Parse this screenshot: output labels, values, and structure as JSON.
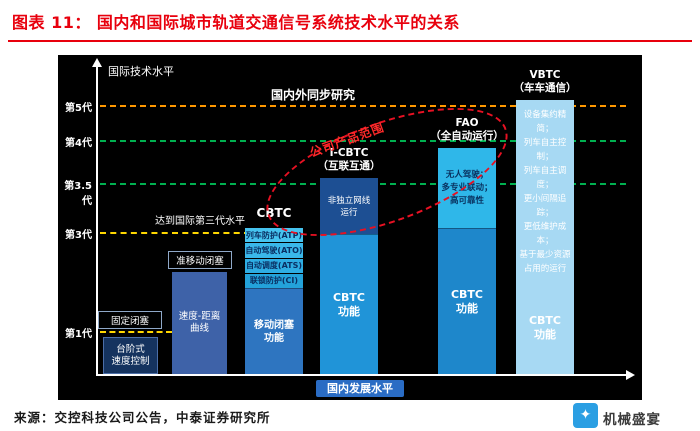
{
  "header": {
    "title": "图表 11：  国内和国际城市轨道交通信号系统技术水平的关系"
  },
  "chart": {
    "y_axis_title": "国际技术水平",
    "x_axis_label": "国内发展水平",
    "generation_labels": {
      "gen5": "第5代",
      "gen4": "第4代",
      "gen3_5": "第3.5代",
      "gen3": "第3代",
      "gen1": "第1代"
    },
    "annotations": {
      "sync_research": "国内外同步研究",
      "reach_gen3": "达到国际第三代水平",
      "product_scope": "公司产品范围"
    },
    "bars": [
      {
        "label": "固定闭塞",
        "body": "台阶式\n速度控制"
      },
      {
        "label": "准移动闭塞",
        "body": "速度-距离\n曲线"
      },
      {
        "label": "CBTC",
        "features": [
          "列车防护(ATP)",
          "自动驾驶(ATO)",
          "自动调度(ATS)",
          "联锁防护(CI)"
        ],
        "body": "移动闭塞\n功能"
      },
      {
        "label": "I-CBTC\n（互联互通）",
        "top": "非独立网线运行",
        "body": "CBTC\n功能"
      },
      {
        "label": "FAO\n（全自动运行）",
        "top": "无人驾驶；\n多专业联动；\n高可靠性",
        "body": "CBTC\n功能"
      },
      {
        "label": "VBTC\n（车车通信）",
        "top": "设备集约精简；\n列车自主控制；\n列车自主调度；\n更小间隔追踪；\n更低维护成本；\n基于最少资源\n占用的运行",
        "body": "CBTC\n功能"
      }
    ]
  },
  "chart_data": {
    "type": "bar",
    "title": "国内和国际城市轨道交通信号系统技术水平的关系",
    "xlabel": "国内发展水平",
    "ylabel": "国际技术水平",
    "categories": [
      "固定闭塞",
      "准移动闭塞",
      "CBTC",
      "I-CBTC（互联互通）",
      "FAO（全自动运行）",
      "VBTC（车车通信）"
    ],
    "values": [
      1,
      2,
      3,
      3.5,
      4,
      5
    ],
    "value_unit": "国际技术代际",
    "ytick_labels": [
      "第1代",
      "第3代",
      "第3.5代",
      "第4代",
      "第5代"
    ],
    "annotations": [
      "国内外同步研究",
      "达到国际第三代水平",
      "公司产品范围"
    ],
    "bar_details": [
      {
        "category": "固定闭塞",
        "contents": [
          "台阶式速度控制"
        ]
      },
      {
        "category": "准移动闭塞",
        "contents": [
          "速度-距离曲线"
        ]
      },
      {
        "category": "CBTC",
        "contents": [
          "列车防护(ATP)",
          "自动驾驶(ATO)",
          "自动调度(ATS)",
          "联锁防护(CI)",
          "移动闭塞功能"
        ]
      },
      {
        "category": "I-CBTC（互联互通）",
        "contents": [
          "非独立网线运行",
          "CBTC功能"
        ]
      },
      {
        "category": "FAO（全自动运行）",
        "contents": [
          "无人驾驶",
          "多专业联动",
          "高可靠性",
          "CBTC功能"
        ]
      },
      {
        "category": "VBTC（车车通信）",
        "contents": [
          "设备集约精简",
          "列车自主控制",
          "列车自主调度",
          "更小间隔追踪",
          "更低维护成本",
          "基于最少资源占用的运行",
          "CBTC功能"
        ]
      }
    ],
    "legend": null,
    "grid": "dashed horizontal generation lines"
  },
  "footer": {
    "source": "来源：交控科技公司公告，中泰证券研究所",
    "watermark": "机械盛宴",
    "watermark_icon": "✦"
  }
}
